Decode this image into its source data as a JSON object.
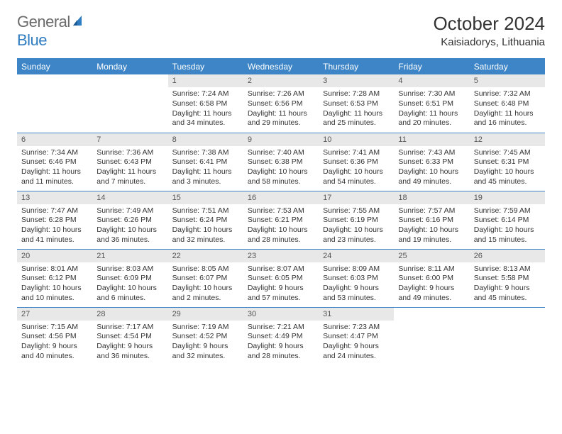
{
  "logo": {
    "text_a": "General",
    "text_b": "Blue"
  },
  "title": "October 2024",
  "location": "Kaisiadorys, Lithuania",
  "colors": {
    "header_bg": "#3d85c6",
    "header_fg": "#ffffff",
    "daynum_bg": "#e8e8e8",
    "text": "#333333",
    "logo_gray": "#6b6b6b",
    "logo_blue": "#2f7cc0",
    "divider": "#3d85c6"
  },
  "weekdays": [
    "Sunday",
    "Monday",
    "Tuesday",
    "Wednesday",
    "Thursday",
    "Friday",
    "Saturday"
  ],
  "weeks": [
    [
      {
        "empty": true
      },
      {
        "empty": true
      },
      {
        "num": "1",
        "sunrise": "Sunrise: 7:24 AM",
        "sunset": "Sunset: 6:58 PM",
        "daylight": "Daylight: 11 hours and 34 minutes."
      },
      {
        "num": "2",
        "sunrise": "Sunrise: 7:26 AM",
        "sunset": "Sunset: 6:56 PM",
        "daylight": "Daylight: 11 hours and 29 minutes."
      },
      {
        "num": "3",
        "sunrise": "Sunrise: 7:28 AM",
        "sunset": "Sunset: 6:53 PM",
        "daylight": "Daylight: 11 hours and 25 minutes."
      },
      {
        "num": "4",
        "sunrise": "Sunrise: 7:30 AM",
        "sunset": "Sunset: 6:51 PM",
        "daylight": "Daylight: 11 hours and 20 minutes."
      },
      {
        "num": "5",
        "sunrise": "Sunrise: 7:32 AM",
        "sunset": "Sunset: 6:48 PM",
        "daylight": "Daylight: 11 hours and 16 minutes."
      }
    ],
    [
      {
        "num": "6",
        "sunrise": "Sunrise: 7:34 AM",
        "sunset": "Sunset: 6:46 PM",
        "daylight": "Daylight: 11 hours and 11 minutes."
      },
      {
        "num": "7",
        "sunrise": "Sunrise: 7:36 AM",
        "sunset": "Sunset: 6:43 PM",
        "daylight": "Daylight: 11 hours and 7 minutes."
      },
      {
        "num": "8",
        "sunrise": "Sunrise: 7:38 AM",
        "sunset": "Sunset: 6:41 PM",
        "daylight": "Daylight: 11 hours and 3 minutes."
      },
      {
        "num": "9",
        "sunrise": "Sunrise: 7:40 AM",
        "sunset": "Sunset: 6:38 PM",
        "daylight": "Daylight: 10 hours and 58 minutes."
      },
      {
        "num": "10",
        "sunrise": "Sunrise: 7:41 AM",
        "sunset": "Sunset: 6:36 PM",
        "daylight": "Daylight: 10 hours and 54 minutes."
      },
      {
        "num": "11",
        "sunrise": "Sunrise: 7:43 AM",
        "sunset": "Sunset: 6:33 PM",
        "daylight": "Daylight: 10 hours and 49 minutes."
      },
      {
        "num": "12",
        "sunrise": "Sunrise: 7:45 AM",
        "sunset": "Sunset: 6:31 PM",
        "daylight": "Daylight: 10 hours and 45 minutes."
      }
    ],
    [
      {
        "num": "13",
        "sunrise": "Sunrise: 7:47 AM",
        "sunset": "Sunset: 6:28 PM",
        "daylight": "Daylight: 10 hours and 41 minutes."
      },
      {
        "num": "14",
        "sunrise": "Sunrise: 7:49 AM",
        "sunset": "Sunset: 6:26 PM",
        "daylight": "Daylight: 10 hours and 36 minutes."
      },
      {
        "num": "15",
        "sunrise": "Sunrise: 7:51 AM",
        "sunset": "Sunset: 6:24 PM",
        "daylight": "Daylight: 10 hours and 32 minutes."
      },
      {
        "num": "16",
        "sunrise": "Sunrise: 7:53 AM",
        "sunset": "Sunset: 6:21 PM",
        "daylight": "Daylight: 10 hours and 28 minutes."
      },
      {
        "num": "17",
        "sunrise": "Sunrise: 7:55 AM",
        "sunset": "Sunset: 6:19 PM",
        "daylight": "Daylight: 10 hours and 23 minutes."
      },
      {
        "num": "18",
        "sunrise": "Sunrise: 7:57 AM",
        "sunset": "Sunset: 6:16 PM",
        "daylight": "Daylight: 10 hours and 19 minutes."
      },
      {
        "num": "19",
        "sunrise": "Sunrise: 7:59 AM",
        "sunset": "Sunset: 6:14 PM",
        "daylight": "Daylight: 10 hours and 15 minutes."
      }
    ],
    [
      {
        "num": "20",
        "sunrise": "Sunrise: 8:01 AM",
        "sunset": "Sunset: 6:12 PM",
        "daylight": "Daylight: 10 hours and 10 minutes."
      },
      {
        "num": "21",
        "sunrise": "Sunrise: 8:03 AM",
        "sunset": "Sunset: 6:09 PM",
        "daylight": "Daylight: 10 hours and 6 minutes."
      },
      {
        "num": "22",
        "sunrise": "Sunrise: 8:05 AM",
        "sunset": "Sunset: 6:07 PM",
        "daylight": "Daylight: 10 hours and 2 minutes."
      },
      {
        "num": "23",
        "sunrise": "Sunrise: 8:07 AM",
        "sunset": "Sunset: 6:05 PM",
        "daylight": "Daylight: 9 hours and 57 minutes."
      },
      {
        "num": "24",
        "sunrise": "Sunrise: 8:09 AM",
        "sunset": "Sunset: 6:03 PM",
        "daylight": "Daylight: 9 hours and 53 minutes."
      },
      {
        "num": "25",
        "sunrise": "Sunrise: 8:11 AM",
        "sunset": "Sunset: 6:00 PM",
        "daylight": "Daylight: 9 hours and 49 minutes."
      },
      {
        "num": "26",
        "sunrise": "Sunrise: 8:13 AM",
        "sunset": "Sunset: 5:58 PM",
        "daylight": "Daylight: 9 hours and 45 minutes."
      }
    ],
    [
      {
        "num": "27",
        "sunrise": "Sunrise: 7:15 AM",
        "sunset": "Sunset: 4:56 PM",
        "daylight": "Daylight: 9 hours and 40 minutes."
      },
      {
        "num": "28",
        "sunrise": "Sunrise: 7:17 AM",
        "sunset": "Sunset: 4:54 PM",
        "daylight": "Daylight: 9 hours and 36 minutes."
      },
      {
        "num": "29",
        "sunrise": "Sunrise: 7:19 AM",
        "sunset": "Sunset: 4:52 PM",
        "daylight": "Daylight: 9 hours and 32 minutes."
      },
      {
        "num": "30",
        "sunrise": "Sunrise: 7:21 AM",
        "sunset": "Sunset: 4:49 PM",
        "daylight": "Daylight: 9 hours and 28 minutes."
      },
      {
        "num": "31",
        "sunrise": "Sunrise: 7:23 AM",
        "sunset": "Sunset: 4:47 PM",
        "daylight": "Daylight: 9 hours and 24 minutes."
      },
      {
        "empty": true
      },
      {
        "empty": true
      }
    ]
  ]
}
